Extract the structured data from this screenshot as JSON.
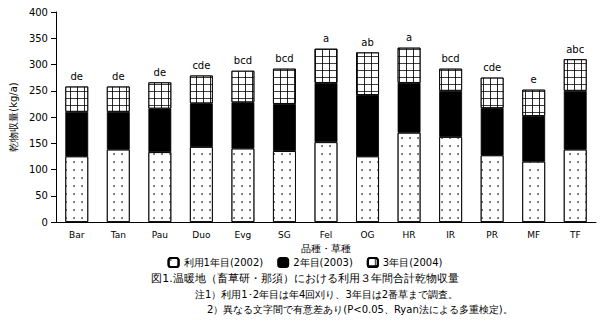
{
  "chart_data": {
    "type": "bar",
    "stacked": true,
    "title": "図1.温暖地（畜草研・那須）における利用３年間合計乾物収量",
    "notes": [
      "注1）利用1･2年目は年4回刈り、3年目は2番草まで調査。",
      "2）異なる文字間で有意差あり(P<0.05、Ryan法による多重検定)。"
    ],
    "x_label": "品種・草種",
    "y_label": "乾物収量(kg/a)",
    "categories": [
      "Bar",
      "Tan",
      "Pau",
      "Duo",
      "Evg",
      "SG",
      "Fel",
      "OG",
      "HR",
      "IR",
      "PR",
      "MF",
      "TF"
    ],
    "annotations": [
      "de",
      "de",
      "de",
      "cde",
      "bcd",
      "bcd",
      "a",
      "ab",
      "a",
      "bcd",
      "cde",
      "e",
      "abc"
    ],
    "series": [
      {
        "name": "利用1年目(2002)",
        "color": "#ffffff",
        "values": [
          125,
          138,
          133,
          143,
          140,
          135,
          152,
          125,
          170,
          162,
          127,
          115,
          138
        ]
      },
      {
        "name": "2年目(2003)",
        "color": "#000000",
        "values": [
          85,
          72,
          83,
          83,
          88,
          90,
          113,
          117,
          95,
          88,
          90,
          87,
          112
        ]
      },
      {
        "name": "3年目(2004)",
        "color": "#ffffff",
        "values": [
          48,
          48,
          50,
          53,
          60,
          67,
          65,
          81,
          67,
          42,
          58,
          50,
          60
        ]
      }
    ],
    "ylim": [
      0,
      400
    ],
    "yticks": [
      0,
      50,
      100,
      150,
      200,
      250,
      300,
      350,
      400
    ],
    "legend": "bottom",
    "grid": false
  }
}
